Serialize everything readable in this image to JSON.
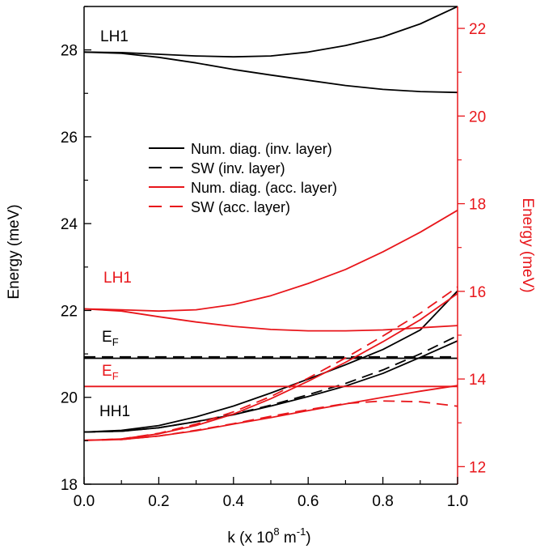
{
  "chart_data": {
    "type": "line",
    "xlabel_parts": {
      "base": "k (x 10",
      "exp1": "8",
      "mid": " m",
      "exp2": "-1",
      "end": ")"
    },
    "ylabel_left": "Energy (meV)",
    "ylabel_right": "Energy (meV)",
    "xlim": [
      0.0,
      1.0
    ],
    "ylim_left": [
      18,
      29
    ],
    "ylim_right": [
      11.6,
      22.5
    ],
    "xticks": [
      "0.0",
      "0.2",
      "0.4",
      "0.6",
      "0.8",
      "1.0"
    ],
    "xtick_values": [
      0.0,
      0.2,
      0.4,
      0.6,
      0.8,
      1.0
    ],
    "yticks_left": [
      "18",
      "20",
      "22",
      "24",
      "26",
      "28"
    ],
    "ytick_values_left": [
      18,
      20,
      22,
      24,
      26,
      28
    ],
    "yticks_right": [
      "12",
      "14",
      "16",
      "18",
      "20",
      "22"
    ],
    "ytick_values_right": [
      12,
      14,
      16,
      18,
      20,
      22
    ],
    "colors": {
      "inv": "#000000",
      "acc": "#e8161b"
    },
    "legend": [
      {
        "label": "Num. diag. (inv. layer)",
        "color": "#000000",
        "style": "solid"
      },
      {
        "label": "SW (inv. layer)",
        "color": "#000000",
        "style": "dash"
      },
      {
        "label": "Num. diag. (acc. layer)",
        "color": "#e8161b",
        "style": "solid"
      },
      {
        "label": "SW (acc. layer)",
        "color": "#e8161b",
        "style": "dash"
      }
    ],
    "annotations": {
      "lh1_black": "LH1",
      "lh1_red": "LH1",
      "hh1_black": "HH1",
      "ef_black": "E",
      "ef_black_sub": "F",
      "ef_red": "E",
      "ef_red_sub": "F"
    },
    "series": [
      {
        "layer": "inv",
        "axis": "left",
        "style": "solid",
        "x": [
          0,
          0.1,
          0.2,
          0.3,
          0.4,
          0.5,
          0.6,
          0.7,
          0.8,
          0.9,
          1.0
        ],
        "y": [
          27.95,
          27.94,
          27.9,
          27.86,
          27.84,
          27.86,
          27.95,
          28.1,
          28.3,
          28.6,
          29.0
        ]
      },
      {
        "layer": "inv",
        "axis": "left",
        "style": "solid",
        "x": [
          0,
          0.1,
          0.2,
          0.3,
          0.4,
          0.5,
          0.6,
          0.7,
          0.8,
          0.9,
          1.0
        ],
        "y": [
          27.95,
          27.92,
          27.83,
          27.7,
          27.55,
          27.42,
          27.3,
          27.18,
          27.09,
          27.04,
          27.02
        ]
      },
      {
        "layer": "inv",
        "axis": "left",
        "style": "solid",
        "x": [
          0,
          1.0
        ],
        "y": [
          20.9,
          20.9
        ]
      },
      {
        "layer": "inv",
        "axis": "left",
        "style": "dash",
        "x": [
          0,
          1.0
        ],
        "y": [
          20.93,
          20.93
        ]
      },
      {
        "layer": "inv",
        "axis": "left",
        "style": "solid",
        "x": [
          0,
          0.1,
          0.2,
          0.3,
          0.4,
          0.5,
          0.6,
          0.7,
          0.8,
          0.9,
          1.0
        ],
        "y": [
          19.2,
          19.24,
          19.35,
          19.55,
          19.8,
          20.1,
          20.42,
          20.75,
          21.1,
          21.55,
          22.45
        ]
      },
      {
        "layer": "inv",
        "axis": "left",
        "style": "solid",
        "x": [
          0,
          0.1,
          0.2,
          0.3,
          0.4,
          0.5,
          0.6,
          0.7,
          0.8,
          0.9,
          1.0
        ],
        "y": [
          19.2,
          19.22,
          19.3,
          19.44,
          19.6,
          19.8,
          20.02,
          20.26,
          20.55,
          20.92,
          21.3
        ]
      },
      {
        "layer": "inv",
        "axis": "left",
        "style": "dash",
        "x": [
          0,
          0.1,
          0.2,
          0.3,
          0.4,
          0.5,
          0.6,
          0.7,
          0.8,
          0.9,
          1.0
        ],
        "y": [
          19.2,
          19.22,
          19.3,
          19.44,
          19.61,
          19.82,
          20.06,
          20.32,
          20.63,
          21.0,
          21.42
        ]
      },
      {
        "layer": "acc",
        "axis": "right",
        "style": "solid",
        "x": [
          0,
          0.1,
          0.2,
          0.3,
          0.4,
          0.5,
          0.6,
          0.7,
          0.8,
          0.9,
          1.0
        ],
        "y": [
          15.6,
          15.58,
          15.55,
          15.58,
          15.7,
          15.9,
          16.18,
          16.5,
          16.9,
          17.35,
          17.85
        ]
      },
      {
        "layer": "acc",
        "axis": "right",
        "style": "solid",
        "x": [
          0,
          0.1,
          0.2,
          0.3,
          0.4,
          0.5,
          0.6,
          0.7,
          0.8,
          0.9,
          1.0
        ],
        "y": [
          15.6,
          15.55,
          15.42,
          15.3,
          15.2,
          15.13,
          15.1,
          15.1,
          15.12,
          15.17,
          15.22
        ]
      },
      {
        "layer": "acc",
        "axis": "right",
        "style": "solid",
        "x": [
          0,
          1.0
        ],
        "y": [
          13.83,
          13.83
        ]
      },
      {
        "layer": "acc",
        "axis": "right",
        "style": "solid",
        "x": [
          0,
          0.1,
          0.2,
          0.3,
          0.4,
          0.5,
          0.6,
          0.7,
          0.8,
          0.9,
          1.0
        ],
        "y": [
          12.6,
          12.63,
          12.75,
          12.94,
          13.2,
          13.55,
          13.95,
          14.38,
          14.85,
          15.35,
          15.95
        ]
      },
      {
        "layer": "acc",
        "axis": "right",
        "style": "dash",
        "x": [
          0,
          0.1,
          0.2,
          0.3,
          0.4,
          0.5,
          0.6,
          0.7,
          0.8,
          0.9,
          1.0
        ],
        "y": [
          12.6,
          12.63,
          12.76,
          12.97,
          13.25,
          13.6,
          14.02,
          14.48,
          14.98,
          15.5,
          16.1
        ]
      },
      {
        "layer": "acc",
        "axis": "right",
        "style": "solid",
        "x": [
          0,
          0.1,
          0.2,
          0.3,
          0.4,
          0.5,
          0.6,
          0.7,
          0.8,
          0.9,
          1.0
        ],
        "y": [
          12.6,
          12.62,
          12.7,
          12.82,
          12.97,
          13.12,
          13.28,
          13.43,
          13.58,
          13.72,
          13.85
        ]
      },
      {
        "layer": "acc",
        "axis": "right",
        "style": "dash",
        "x": [
          0,
          0.1,
          0.2,
          0.3,
          0.4,
          0.5,
          0.6,
          0.7,
          0.8,
          0.9,
          1.0
        ],
        "y": [
          12.6,
          12.62,
          12.7,
          12.83,
          12.98,
          13.15,
          13.3,
          13.44,
          13.5,
          13.48,
          13.38
        ]
      }
    ]
  }
}
